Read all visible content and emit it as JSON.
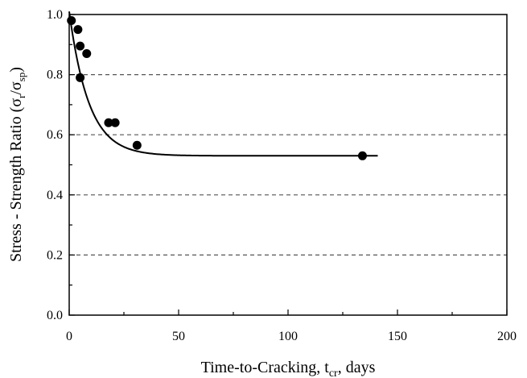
{
  "chart_data": {
    "type": "scatter",
    "title": "",
    "xlabel": {
      "main": "Time-to-Cracking, t",
      "sub": "cr",
      "tail": ", days"
    },
    "ylabel": {
      "p1": "Stress - Strength Ratio  (σ",
      "s1": "r",
      "p2": "/σ",
      "s2": "sp",
      "p3": ")"
    },
    "xlim": [
      0,
      200
    ],
    "ylim": [
      0.0,
      1.0
    ],
    "x_ticks": [
      "0",
      "50",
      "100",
      "150",
      "200"
    ],
    "y_ticks": [
      "0.0",
      "0.2",
      "0.4",
      "0.6",
      "0.8",
      "1.0"
    ],
    "grid": "horizontal dashed",
    "points": [
      {
        "x": 1,
        "y": 0.98
      },
      {
        "x": 4,
        "y": 0.95
      },
      {
        "x": 5,
        "y": 0.895
      },
      {
        "x": 8,
        "y": 0.87
      },
      {
        "x": 5,
        "y": 0.79
      },
      {
        "x": 18,
        "y": 0.64
      },
      {
        "x": 21,
        "y": 0.64
      },
      {
        "x": 31,
        "y": 0.565
      },
      {
        "x": 134,
        "y": 0.53
      }
    ],
    "fit_curve": {
      "a": 0.53,
      "b": 0.48,
      "tau": 9.0,
      "x_start": 0,
      "x_end": 141
    }
  }
}
